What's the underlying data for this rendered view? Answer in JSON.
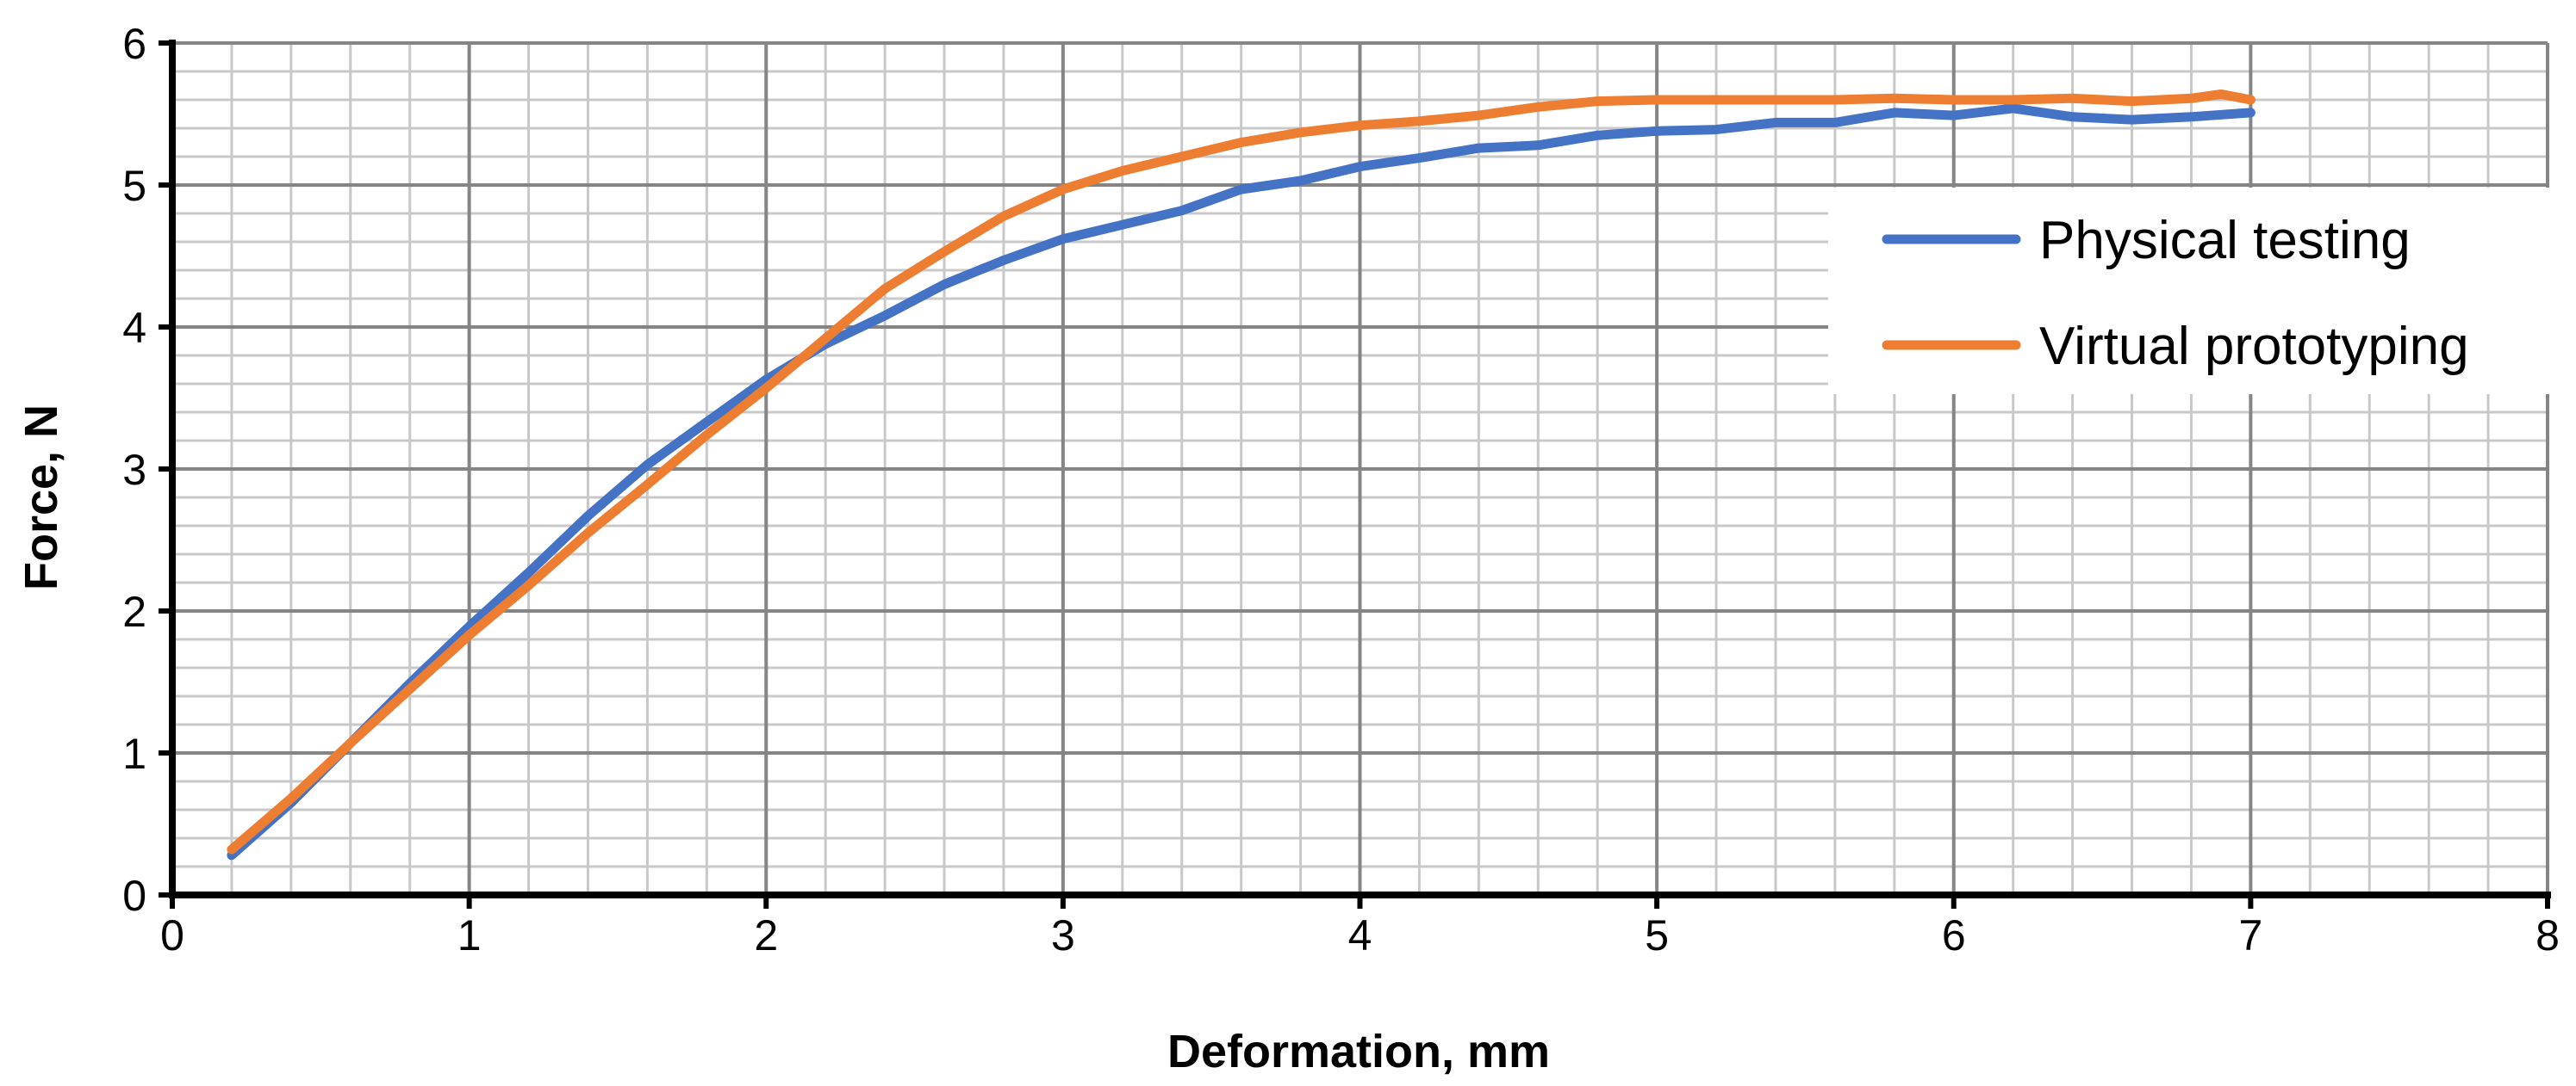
{
  "chart_data": {
    "type": "line",
    "title": "",
    "xlabel": "Deformation, mm",
    "ylabel": "Force, N",
    "xlim": [
      0,
      8
    ],
    "ylim": [
      0,
      6
    ],
    "x_ticks": [
      "0",
      "1",
      "2",
      "3",
      "4",
      "5",
      "6",
      "7",
      "8"
    ],
    "y_ticks": [
      "0",
      "1",
      "2",
      "3",
      "4",
      "5",
      "6"
    ],
    "grid": true,
    "legend_position": "right",
    "series": [
      {
        "name": "Physical testing",
        "color": "#4472C4",
        "points": [
          [
            0.2,
            0.28
          ],
          [
            0.4,
            0.65
          ],
          [
            0.6,
            1.07
          ],
          [
            0.8,
            1.49
          ],
          [
            1.0,
            1.89
          ],
          [
            1.2,
            2.27
          ],
          [
            1.4,
            2.67
          ],
          [
            1.6,
            3.03
          ],
          [
            1.8,
            3.33
          ],
          [
            2.0,
            3.63
          ],
          [
            2.2,
            3.88
          ],
          [
            2.4,
            4.08
          ],
          [
            2.6,
            4.3
          ],
          [
            2.8,
            4.47
          ],
          [
            3.0,
            4.62
          ],
          [
            3.2,
            4.72
          ],
          [
            3.4,
            4.82
          ],
          [
            3.6,
            4.97
          ],
          [
            3.8,
            5.03
          ],
          [
            4.0,
            5.13
          ],
          [
            4.2,
            5.19
          ],
          [
            4.4,
            5.26
          ],
          [
            4.6,
            5.28
          ],
          [
            4.8,
            5.35
          ],
          [
            5.0,
            5.38
          ],
          [
            5.2,
            5.39
          ],
          [
            5.4,
            5.44
          ],
          [
            5.6,
            5.44
          ],
          [
            5.8,
            5.51
          ],
          [
            6.0,
            5.49
          ],
          [
            6.2,
            5.54
          ],
          [
            6.4,
            5.48
          ],
          [
            6.6,
            5.46
          ],
          [
            6.8,
            5.48
          ],
          [
            7.0,
            5.51
          ]
        ]
      },
      {
        "name": "Virtual prototyping",
        "color": "#ED7D31",
        "points": [
          [
            0.2,
            0.32
          ],
          [
            0.4,
            0.68
          ],
          [
            0.6,
            1.07
          ],
          [
            0.8,
            1.45
          ],
          [
            1.0,
            1.83
          ],
          [
            1.2,
            2.18
          ],
          [
            1.4,
            2.55
          ],
          [
            1.6,
            2.89
          ],
          [
            1.8,
            3.24
          ],
          [
            2.0,
            3.57
          ],
          [
            2.2,
            3.92
          ],
          [
            2.4,
            4.27
          ],
          [
            2.6,
            4.53
          ],
          [
            2.8,
            4.78
          ],
          [
            3.0,
            4.97
          ],
          [
            3.2,
            5.1
          ],
          [
            3.4,
            5.2
          ],
          [
            3.6,
            5.3
          ],
          [
            3.8,
            5.37
          ],
          [
            4.0,
            5.42
          ],
          [
            4.2,
            5.45
          ],
          [
            4.4,
            5.49
          ],
          [
            4.6,
            5.55
          ],
          [
            4.8,
            5.59
          ],
          [
            5.0,
            5.6
          ],
          [
            5.2,
            5.6
          ],
          [
            5.4,
            5.6
          ],
          [
            5.6,
            5.6
          ],
          [
            5.8,
            5.61
          ],
          [
            6.0,
            5.6
          ],
          [
            6.2,
            5.6
          ],
          [
            6.4,
            5.61
          ],
          [
            6.6,
            5.59
          ],
          [
            6.8,
            5.61
          ],
          [
            6.9,
            5.64
          ],
          [
            7.0,
            5.6
          ]
        ]
      }
    ]
  }
}
